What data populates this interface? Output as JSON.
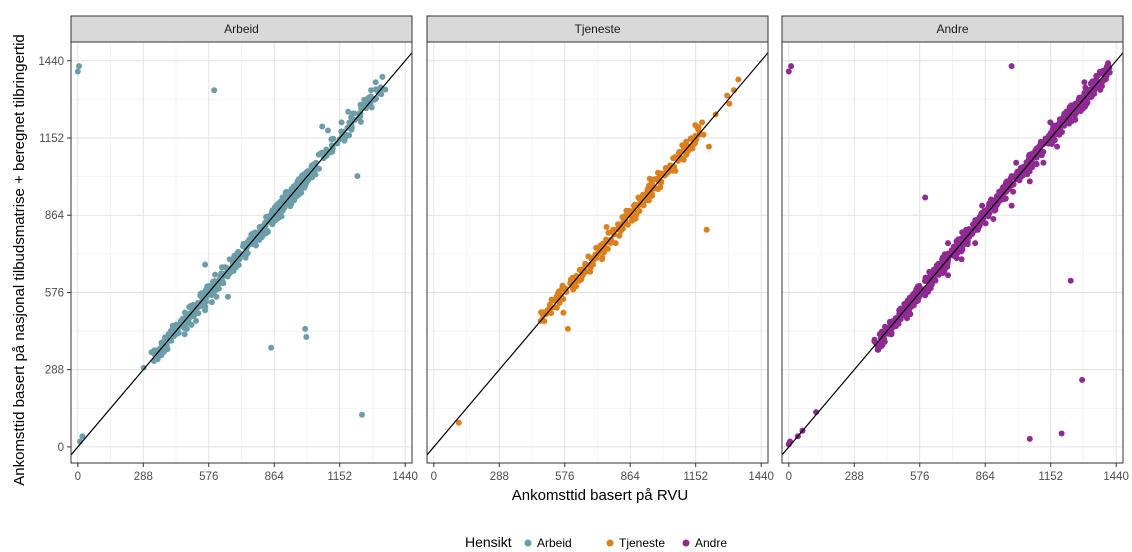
{
  "chart_data": {
    "type": "scatter",
    "xlabel": "Ankomsttid basert på RVU",
    "ylabel": "Ankomsttid basert på nasjonal tilbudsmatrise + beregnet tilbringertid",
    "xlim": [
      -30,
      1470
    ],
    "ylim": [
      -60,
      1510
    ],
    "x_ticks": [
      0,
      288,
      576,
      864,
      1152,
      1440
    ],
    "y_ticks": [
      0,
      288,
      576,
      864,
      1152,
      1440
    ],
    "x_tick_labels": [
      "0",
      "288",
      "576",
      "864",
      "1152",
      "1440"
    ],
    "y_tick_labels": [
      "0",
      "288",
      "576",
      "864",
      "1152",
      "1440"
    ],
    "grid": true,
    "reference_line": "y = x",
    "legend": {
      "title": "Hensikt",
      "position": "bottom",
      "entries": [
        {
          "label": "Arbeid",
          "color": "#6b9ea8"
        },
        {
          "label": "Tjeneste",
          "color": "#dd7f1b"
        },
        {
          "label": "Andre",
          "color": "#8e2a91"
        }
      ]
    },
    "panels": [
      {
        "strip": "Arbeid",
        "color": "#6b9ea8",
        "points": [
          [
            5,
            1420
          ],
          [
            0,
            1400
          ],
          [
            600,
            1330
          ],
          [
            10,
            20
          ],
          [
            20,
            40
          ],
          [
            1250,
            120
          ],
          [
            1230,
            1010
          ],
          [
            1000,
            440
          ],
          [
            1005,
            410
          ],
          [
            850,
            370
          ],
          [
            290,
            295
          ],
          [
            1020,
            1020
          ],
          [
            1100,
            1180
          ],
          [
            1075,
            1195
          ],
          [
            1160,
            1210
          ],
          [
            1190,
            1250
          ],
          [
            1310,
            1360
          ],
          [
            1340,
            1380
          ],
          [
            1290,
            1330
          ],
          [
            1260,
            1295
          ],
          [
            470,
            420
          ],
          [
            480,
            440
          ],
          [
            500,
            455
          ],
          [
            520,
            470
          ],
          [
            560,
            510
          ],
          [
            590,
            540
          ],
          [
            610,
            560
          ],
          [
            620,
            590
          ],
          [
            640,
            610
          ],
          [
            700,
            680
          ],
          [
            560,
            680
          ],
          [
            660,
            560
          ],
          [
            780,
            800
          ],
          [
            800,
            820
          ],
          [
            840,
            850
          ],
          [
            880,
            900
          ],
          [
            900,
            930
          ],
          [
            950,
            960
          ],
          [
            980,
            1000
          ],
          [
            1030,
            1050
          ],
          [
            1060,
            1090
          ]
        ],
        "density_segments": [
          [
            330,
            1000,
            13
          ],
          [
            860,
            1050,
            11
          ],
          [
            1080,
            1340,
            8
          ]
        ]
      },
      {
        "strip": "Tjeneste",
        "color": "#dd7f1b",
        "points": [
          [
            110,
            90
          ],
          [
            470,
            470
          ],
          [
            480,
            490
          ],
          [
            500,
            510
          ],
          [
            510,
            530
          ],
          [
            520,
            545
          ],
          [
            540,
            560
          ],
          [
            560,
            560
          ],
          [
            580,
            590
          ],
          [
            600,
            610
          ],
          [
            590,
            440
          ],
          [
            520,
            520
          ],
          [
            550,
            580
          ],
          [
            570,
            500
          ],
          [
            640,
            620
          ],
          [
            660,
            660
          ],
          [
            680,
            710
          ],
          [
            700,
            680
          ],
          [
            720,
            720
          ],
          [
            740,
            700
          ],
          [
            760,
            820
          ],
          [
            810,
            830
          ],
          [
            840,
            860
          ],
          [
            860,
            880
          ],
          [
            880,
            900
          ],
          [
            900,
            930
          ],
          [
            920,
            940
          ],
          [
            940,
            960
          ],
          [
            960,
            980
          ],
          [
            980,
            1000
          ],
          [
            1000,
            1020
          ],
          [
            1020,
            1040
          ],
          [
            1040,
            1050
          ],
          [
            1060,
            1080
          ],
          [
            1080,
            1100
          ],
          [
            1100,
            1110
          ],
          [
            1110,
            1120
          ],
          [
            1130,
            1150
          ],
          [
            1150,
            1160
          ],
          [
            1160,
            1190
          ],
          [
            1180,
            1210
          ],
          [
            1210,
            1120
          ],
          [
            1200,
            810
          ],
          [
            1150,
            1200
          ],
          [
            1240,
            1240
          ],
          [
            1290,
            1310
          ],
          [
            1300,
            1280
          ],
          [
            1340,
            1370
          ],
          [
            1320,
            1330
          ],
          [
            950,
            1000
          ],
          [
            990,
            990
          ],
          [
            880,
            880
          ],
          [
            900,
            900
          ],
          [
            800,
            760
          ],
          [
            780,
            800
          ]
        ],
        "density_segments": [
          [
            480,
            1180,
            5
          ]
        ]
      },
      {
        "strip": "Andre",
        "color": "#8e2a91",
        "points": [
          [
            0,
            1400
          ],
          [
            10,
            1420
          ],
          [
            980,
            1420
          ],
          [
            600,
            930
          ],
          [
            1240,
            620
          ],
          [
            1290,
            250
          ],
          [
            1060,
            30
          ],
          [
            1200,
            50
          ],
          [
            0,
            10
          ],
          [
            5,
            20
          ],
          [
            40,
            40
          ],
          [
            60,
            60
          ],
          [
            120,
            130
          ],
          [
            380,
            390
          ],
          [
            400,
            420
          ],
          [
            430,
            440
          ],
          [
            470,
            480
          ],
          [
            500,
            510
          ],
          [
            550,
            560
          ],
          [
            580,
            590
          ],
          [
            620,
            630
          ],
          [
            660,
            670
          ],
          [
            700,
            720
          ],
          [
            740,
            760
          ],
          [
            780,
            810
          ],
          [
            820,
            840
          ],
          [
            860,
            880
          ],
          [
            900,
            920
          ],
          [
            940,
            960
          ],
          [
            980,
            1010
          ],
          [
            1020,
            1040
          ],
          [
            1060,
            1090
          ],
          [
            1100,
            1120
          ],
          [
            1140,
            1150
          ],
          [
            1180,
            1200
          ],
          [
            1220,
            1240
          ],
          [
            1260,
            1280
          ],
          [
            1300,
            1320
          ],
          [
            1340,
            1350
          ],
          [
            1380,
            1400
          ],
          [
            1400,
            1420
          ],
          [
            520,
            480
          ],
          [
            700,
            640
          ],
          [
            760,
            700
          ],
          [
            820,
            760
          ],
          [
            900,
            850
          ],
          [
            980,
            900
          ],
          [
            1060,
            990
          ],
          [
            1120,
            1060
          ],
          [
            1180,
            1120
          ],
          [
            1260,
            1220
          ],
          [
            450,
            420
          ],
          [
            700,
            760
          ],
          [
            850,
            900
          ],
          [
            1000,
            1060
          ],
          [
            1150,
            1210
          ],
          [
            1300,
            1360
          ]
        ],
        "density_segments": [
          [
            380,
            1410,
            10
          ]
        ]
      }
    ]
  }
}
